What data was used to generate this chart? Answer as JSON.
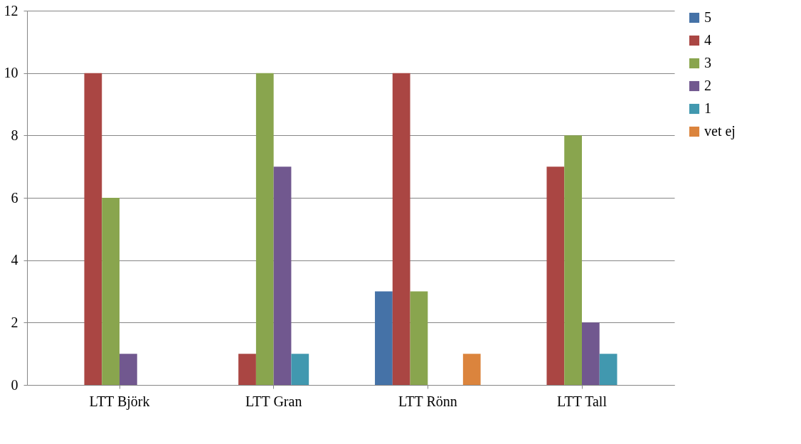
{
  "chart_data": {
    "type": "bar",
    "categories": [
      "LTT Björk",
      "LTT Gran",
      "LTT Rönn",
      "LTT Tall"
    ],
    "series": [
      {
        "name": "5",
        "color": "#4572a7",
        "values": [
          0,
          0,
          3,
          0
        ]
      },
      {
        "name": "4",
        "color": "#aa4643",
        "values": [
          10,
          1,
          10,
          7
        ]
      },
      {
        "name": "3",
        "color": "#89a54e",
        "values": [
          6,
          10,
          3,
          8
        ]
      },
      {
        "name": "2",
        "color": "#71588f",
        "values": [
          1,
          7,
          0,
          2
        ]
      },
      {
        "name": "1",
        "color": "#4198af",
        "values": [
          0,
          1,
          0,
          1
        ]
      },
      {
        "name": "vet ej",
        "color": "#db843d",
        "values": [
          0,
          0,
          1,
          0
        ]
      }
    ],
    "ylim": [
      0,
      12
    ],
    "yticks": [
      0,
      2,
      4,
      6,
      8,
      10,
      12
    ],
    "grid": "y",
    "legend": "right"
  }
}
